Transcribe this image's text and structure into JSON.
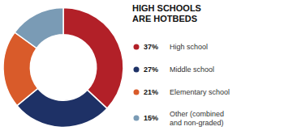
{
  "chart_data": {
    "type": "pie",
    "title": "HIGH SCHOOLS\nARE HOTBEDS",
    "categories": [
      "High school",
      "Middle school",
      "Elementary school",
      "Other (combined\nand non-graded)"
    ],
    "values": [
      37,
      27,
      21,
      15
    ],
    "value_labels": [
      "37%",
      "27%",
      "21%",
      "15%"
    ],
    "colors": [
      "#b22028",
      "#1e3166",
      "#d95b2a",
      "#7a9bb5"
    ]
  }
}
